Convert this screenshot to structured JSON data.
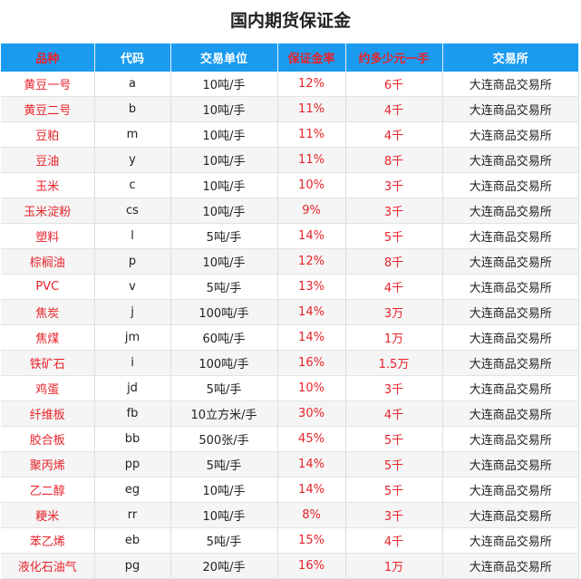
{
  "title": "国内期货保证金",
  "headers": [
    "品种",
    "代码",
    "交易单位",
    "保证金率",
    "约多少元一手",
    "交易所"
  ],
  "colors": {
    "header_bg": "#1a9bf0",
    "accent_red": "#e8232a"
  },
  "rows": [
    [
      "黄豆一号",
      "a",
      "10吨/手",
      "12%",
      "6千",
      "大连商品交易所"
    ],
    [
      "黄豆二号",
      "b",
      "10吨/手",
      "11%",
      "4千",
      "大连商品交易所"
    ],
    [
      "豆粕",
      "m",
      "10吨/手",
      "11%",
      "4千",
      "大连商品交易所"
    ],
    [
      "豆油",
      "y",
      "10吨/手",
      "11%",
      "8千",
      "大连商品交易所"
    ],
    [
      "玉米",
      "c",
      "10吨/手",
      "10%",
      "3千",
      "大连商品交易所"
    ],
    [
      "玉米淀粉",
      "cs",
      "10吨/手",
      "9%",
      "3千",
      "大连商品交易所"
    ],
    [
      "塑料",
      "l",
      "5吨/手",
      "14%",
      "5千",
      "大连商品交易所"
    ],
    [
      "棕榈油",
      "p",
      "10吨/手",
      "12%",
      "8千",
      "大连商品交易所"
    ],
    [
      "PVC",
      "v",
      "5吨/手",
      "13%",
      "4千",
      "大连商品交易所"
    ],
    [
      "焦炭",
      "j",
      "100吨/手",
      "14%",
      "3万",
      "大连商品交易所"
    ],
    [
      "焦煤",
      "jm",
      "60吨/手",
      "14%",
      "1万",
      "大连商品交易所"
    ],
    [
      "铁矿石",
      "i",
      "100吨/手",
      "16%",
      "1.5万",
      "大连商品交易所"
    ],
    [
      "鸡蛋",
      "jd",
      "5吨/手",
      "10%",
      "3千",
      "大连商品交易所"
    ],
    [
      "纤维板",
      "fb",
      "10立方米/手",
      "30%",
      "4千",
      "大连商品交易所"
    ],
    [
      "胶合板",
      "bb",
      "500张/手",
      "45%",
      "5千",
      "大连商品交易所"
    ],
    [
      "聚丙烯",
      "pp",
      "5吨/手",
      "14%",
      "5千",
      "大连商品交易所"
    ],
    [
      "乙二醇",
      "eg",
      "10吨/手",
      "14%",
      "5千",
      "大连商品交易所"
    ],
    [
      "粳米",
      "rr",
      "10吨/手",
      "8%",
      "3千",
      "大连商品交易所"
    ],
    [
      "苯乙烯",
      "eb",
      "5吨/手",
      "15%",
      "4千",
      "大连商品交易所"
    ],
    [
      "液化石油气",
      "pg",
      "20吨/手",
      "16%",
      "1万",
      "大连商品交易所"
    ]
  ]
}
